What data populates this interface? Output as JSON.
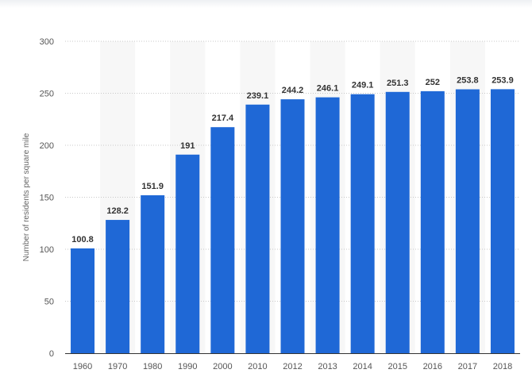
{
  "colors": {
    "bar": "#1f68d6",
    "band": "#f7f7f7",
    "grid": "#c8c8c8",
    "axis": "#333333"
  },
  "chart_data": {
    "type": "bar",
    "categories": [
      "1960",
      "1970",
      "1980",
      "1990",
      "2000",
      "2010",
      "2012",
      "2013",
      "2014",
      "2015",
      "2016",
      "2017",
      "2018"
    ],
    "values": [
      100.8,
      128.2,
      151.9,
      191,
      217.4,
      239.1,
      244.2,
      246.1,
      249.1,
      251.3,
      252,
      253.8,
      253.9
    ],
    "data_labels": [
      "100.8",
      "128.2",
      "151.9",
      "191",
      "217.4",
      "239.1",
      "244.2",
      "246.1",
      "249.1",
      "251.3",
      "252",
      "253.8",
      "253.9"
    ],
    "yticks": [
      "0",
      "50",
      "100",
      "150",
      "200",
      "250",
      "300"
    ],
    "ylabel": "Number of residents per square mile",
    "xlabel": "",
    "ylim": [
      0,
      300
    ],
    "grid": "dotted horizontal",
    "legend": "none"
  }
}
